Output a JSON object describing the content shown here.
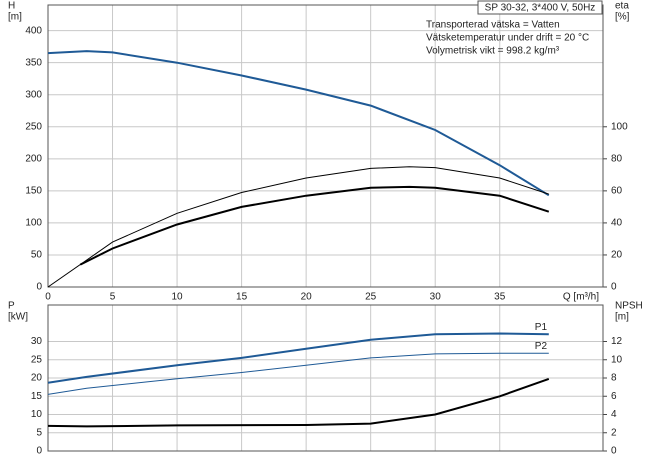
{
  "chart_data": [
    {
      "type": "line",
      "title": "SP 30-32, 3*400 V, 50Hz",
      "annotations": [
        "Transporterad vätska = Vatten",
        "Vätsketemperatur under drift = 20 °C",
        "Volymetrisk vikt = 998.2 kg/m³"
      ],
      "xlabel": "Q [m³/h]",
      "ylabel": "H",
      "yunit": "[m]",
      "y2label": "eta",
      "y2unit": "[%]",
      "xlim": [
        0,
        43
      ],
      "xticks": [
        0,
        5,
        10,
        15,
        20,
        25,
        30,
        35
      ],
      "show_xtick_labels": true,
      "ylim": [
        0,
        440
      ],
      "yticks": [
        0,
        50,
        100,
        150,
        200,
        250,
        300,
        350,
        400
      ],
      "y2lim": [
        0,
        176
      ],
      "y2ticks": [
        0,
        20,
        40,
        60,
        80,
        100
      ],
      "grid": true,
      "series": [
        {
          "color": "#1f5a96",
          "width": 2,
          "axis": "y",
          "x": [
            0,
            3,
            5,
            10,
            15,
            20,
            25,
            30,
            35,
            38.8
          ],
          "values": [
            365,
            368,
            366,
            350,
            330,
            308,
            283,
            245,
            190,
            143
          ]
        },
        {
          "color": "#000000",
          "width": 1,
          "axis": "y2",
          "x": [
            0,
            5,
            10,
            15,
            20,
            25,
            28,
            30,
            35,
            38.8
          ],
          "values": [
            0,
            28,
            46,
            59,
            68,
            74,
            75,
            74.5,
            68,
            58
          ]
        },
        {
          "color": "#000000",
          "width": 2,
          "axis": "y2",
          "x": [
            2.5,
            5,
            10,
            15,
            20,
            25,
            28,
            30,
            35,
            38.8
          ],
          "values": [
            14,
            24,
            39,
            50,
            57,
            62,
            62.5,
            62,
            57,
            47
          ]
        }
      ]
    },
    {
      "type": "line",
      "ylabel": "P",
      "yunit": "[kW]",
      "y2label": "NPSH",
      "y2unit": "[m]",
      "xlim": [
        0,
        43
      ],
      "xticks": [
        0,
        5,
        10,
        15,
        20,
        25,
        30,
        35
      ],
      "show_xtick_labels": false,
      "ylim": [
        0,
        40
      ],
      "yticks": [
        0,
        5,
        10,
        15,
        20,
        25,
        30
      ],
      "y2lim": [
        0,
        16
      ],
      "y2ticks": [
        0,
        2,
        4,
        6,
        8,
        10,
        12
      ],
      "grid": true,
      "series": [
        {
          "name": "P1",
          "color": "#1f5a96",
          "width": 2,
          "axis": "y",
          "x": [
            0,
            3,
            10,
            15,
            20,
            25,
            30,
            35,
            38.8
          ],
          "values": [
            18.7,
            20.3,
            23.5,
            25.5,
            28,
            30.5,
            32,
            32.2,
            32
          ]
        },
        {
          "name": "P2",
          "color": "#1f5a96",
          "width": 1,
          "axis": "y",
          "x": [
            0,
            3,
            10,
            15,
            20,
            25,
            30,
            35,
            38.8
          ],
          "values": [
            15.5,
            17.2,
            19.8,
            21.5,
            23.5,
            25.5,
            26.6,
            26.8,
            26.8
          ]
        },
        {
          "color": "#000000",
          "width": 2,
          "axis": "y2",
          "x": [
            0,
            3,
            10,
            20,
            25,
            30,
            35,
            38.8
          ],
          "values": [
            2.75,
            2.7,
            2.8,
            2.85,
            3,
            4,
            6,
            7.9
          ]
        }
      ]
    }
  ]
}
